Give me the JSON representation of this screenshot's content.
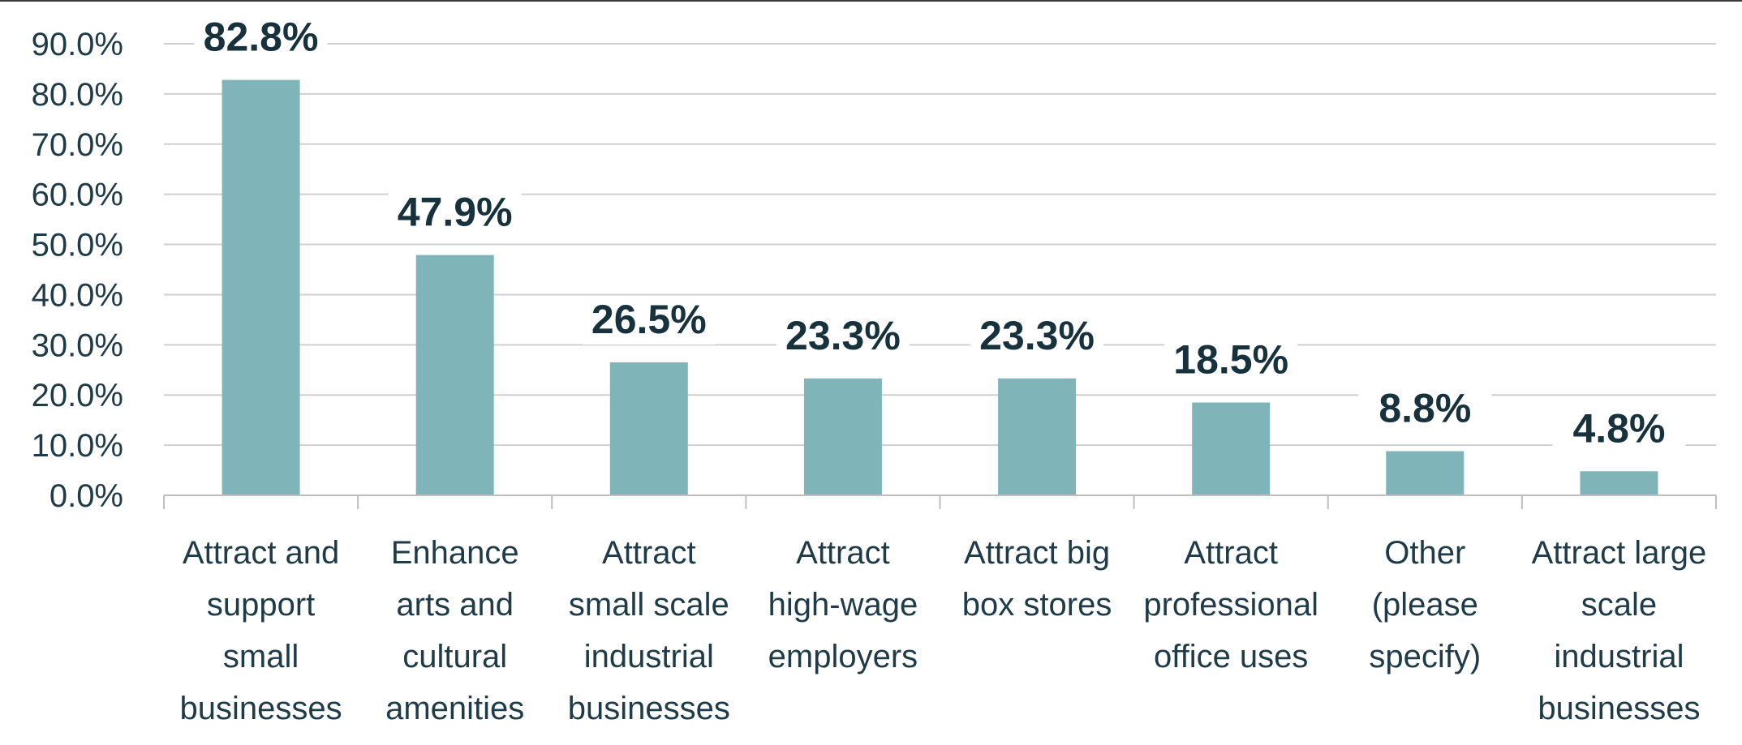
{
  "chart_data": {
    "type": "bar",
    "categories": [
      [
        "Attract and",
        "support",
        "small",
        "businesses"
      ],
      [
        "Enhance",
        "arts and",
        "cultural",
        "amenities"
      ],
      [
        "Attract",
        "small scale",
        "industrial",
        "businesses"
      ],
      [
        "Attract",
        "high-wage",
        "employers"
      ],
      [
        "Attract big",
        "box stores"
      ],
      [
        "Attract",
        "professional",
        "office uses"
      ],
      [
        "Other",
        "(please",
        "specify)"
      ],
      [
        "Attract large",
        "scale",
        "industrial",
        "businesses"
      ]
    ],
    "values": [
      82.8,
      47.9,
      26.5,
      23.3,
      23.3,
      18.5,
      8.8,
      4.8
    ],
    "data_labels": [
      "82.8%",
      "47.9%",
      "26.5%",
      "23.3%",
      "23.3%",
      "18.5%",
      "8.8%",
      "4.8%"
    ],
    "yticks": [
      0,
      10,
      20,
      30,
      40,
      50,
      60,
      70,
      80,
      90
    ],
    "ytick_labels": [
      "0.0%",
      "10.0%",
      "20.0%",
      "30.0%",
      "40.0%",
      "50.0%",
      "60.0%",
      "70.0%",
      "80.0%",
      "90.0%"
    ],
    "ylim": [
      0,
      90
    ],
    "grid": true,
    "legend": "none",
    "colors": {
      "bar": "#7fb5b9",
      "grid": "#d0d0d0",
      "axis": "#bfbfbf",
      "tick_text": "#1f3b47",
      "label_text": "#17323d"
    }
  }
}
